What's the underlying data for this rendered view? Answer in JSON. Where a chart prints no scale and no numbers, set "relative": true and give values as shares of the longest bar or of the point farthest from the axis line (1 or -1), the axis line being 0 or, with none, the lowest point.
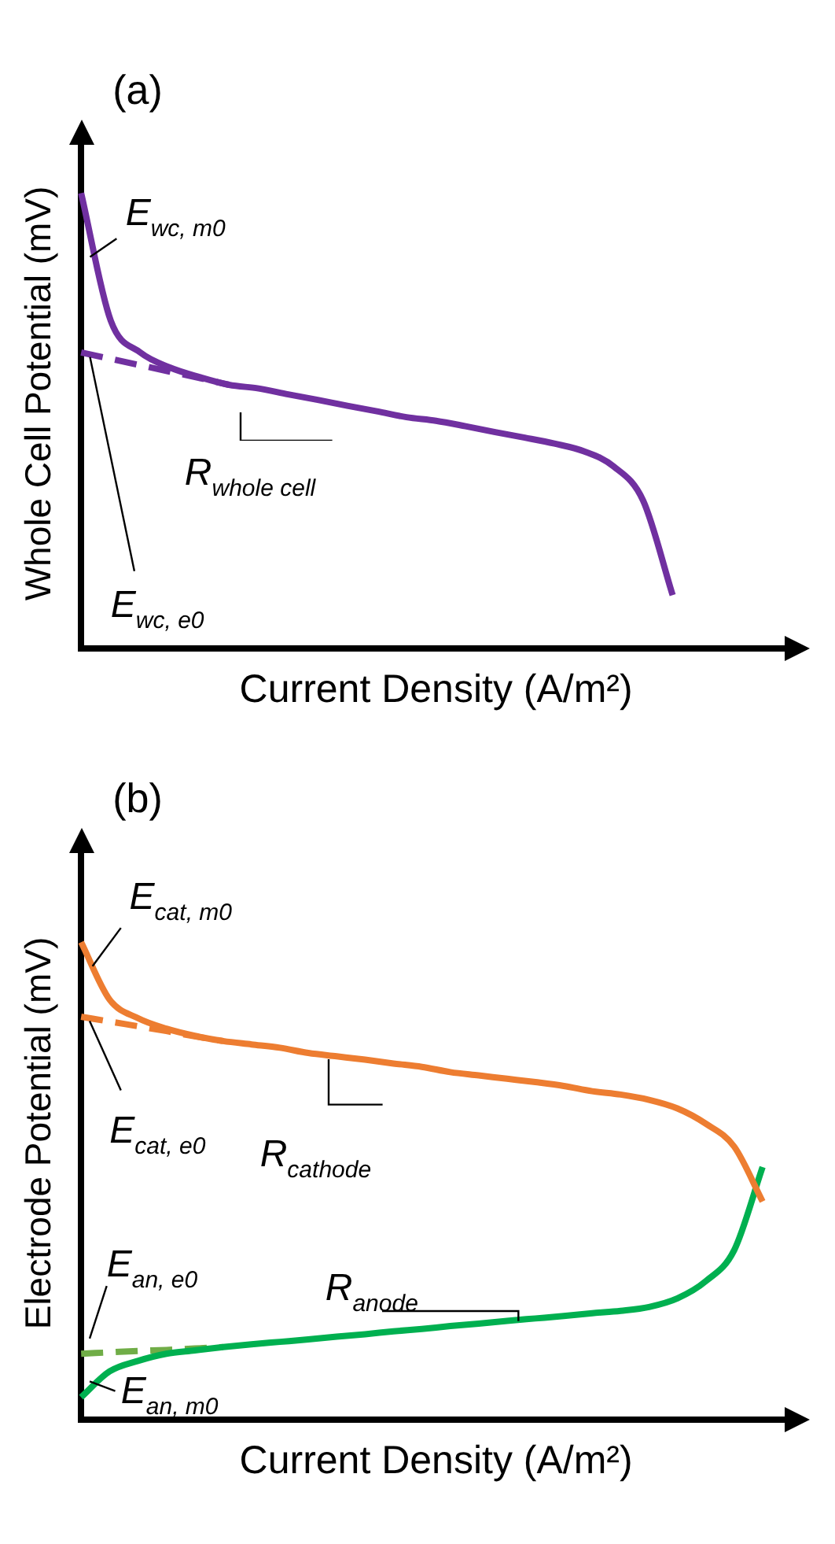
{
  "chart_data": [
    {
      "type": "line",
      "title": "(a)",
      "xlabel": "Current Density (A/m²)",
      "ylabel": "Whole Cell Potential (mV)",
      "relative": true,
      "grid": false,
      "legend": false,
      "tick_labels": false,
      "marker": "none",
      "categories": [
        null,
        null,
        null,
        null,
        null,
        null,
        null,
        null,
        null,
        null,
        null,
        null,
        null,
        null,
        null,
        null,
        null,
        null,
        null,
        null,
        null,
        null,
        null,
        null,
        null
      ],
      "series": [
        {
          "color": "#7030a0",
          "line_style": "solid",
          "values": [
            1.0,
            0.72,
            0.65,
            0.617,
            0.596,
            0.579,
            0.571,
            0.558,
            0.546,
            0.533,
            0.521,
            0.508,
            0.5,
            0.488,
            0.475,
            0.463,
            0.45,
            0.433,
            0.4,
            0.325,
            0.117,
            null,
            null,
            null,
            null
          ]
        },
        {
          "color": "#7030a0",
          "line_style": "dashed",
          "values": [
            0.65,
            0.636,
            0.622,
            0.608,
            0.594,
            0.579,
            null,
            null,
            null,
            null,
            null,
            null,
            null,
            null,
            null,
            null,
            null,
            null,
            null,
            null,
            null,
            null,
            null,
            null,
            null
          ]
        }
      ],
      "annotations": [
        "E$_{wc, m0}$",
        "E$_{wc, e0}$",
        "R$_{whole cell}$"
      ]
    },
    {
      "type": "line",
      "title": "(b)",
      "xlabel": "Current Density (A/m²)",
      "ylabel": "Electrode Potential (mV)",
      "relative": true,
      "grid": false,
      "legend": false,
      "tick_labels": false,
      "marker": "none",
      "categories": [
        null,
        null,
        null,
        null,
        null,
        null,
        null,
        null,
        null,
        null,
        null,
        null,
        null,
        null,
        null,
        null,
        null,
        null,
        null,
        null,
        null,
        null,
        null,
        null,
        null,
        null
      ],
      "series": [
        {
          "color": "#ed7d31",
          "line_style": "solid",
          "values": [
            1.0,
            0.88,
            0.841,
            0.819,
            0.804,
            0.793,
            0.786,
            0.779,
            0.768,
            0.761,
            0.754,
            0.746,
            0.739,
            0.728,
            0.721,
            0.714,
            0.707,
            0.699,
            0.688,
            0.681,
            0.67,
            0.652,
            0.62,
            0.572,
            0.457,
            null
          ]
        },
        {
          "color": "#ed7d31",
          "line_style": "dashed",
          "values": [
            0.844,
            0.834,
            0.824,
            0.814,
            0.803,
            0.793,
            null,
            null,
            null,
            null,
            null,
            null,
            null,
            null,
            null,
            null,
            null,
            null,
            null,
            null,
            null,
            null,
            null,
            null,
            null,
            null
          ]
        },
        {
          "color": "#00b050",
          "line_style": "solid",
          "values": [
            0.047,
            0.101,
            0.123,
            0.138,
            0.145,
            0.152,
            0.158,
            0.163,
            0.168,
            0.174,
            0.179,
            0.185,
            0.19,
            0.196,
            0.201,
            0.207,
            0.212,
            0.217,
            0.223,
            0.228,
            0.236,
            0.254,
            0.29,
            0.355,
            0.529,
            null
          ]
        },
        {
          "color": "#70ad47",
          "line_style": "dashed",
          "values": [
            0.138,
            0.141,
            0.144,
            0.146,
            0.149,
            0.152,
            null,
            null,
            null,
            null,
            null,
            null,
            null,
            null,
            null,
            null,
            null,
            null,
            null,
            null,
            null,
            null,
            null,
            null,
            null,
            null
          ]
        }
      ],
      "annotations": [
        "E$_{cat, m0}$",
        "E$_{cat, e0}$",
        "R$_{cathode}$",
        "E$_{an, e0}$",
        "R$_{anode}$",
        "E$_{an, m0}$"
      ]
    }
  ]
}
